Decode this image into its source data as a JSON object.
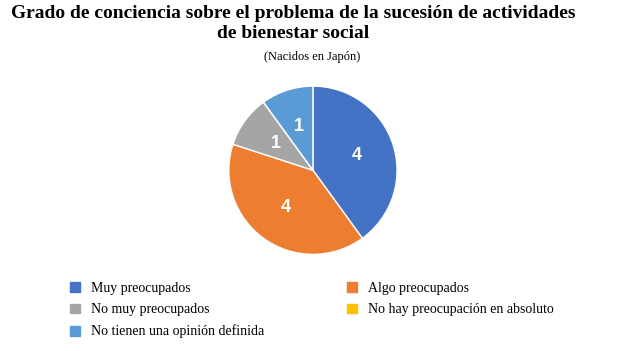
{
  "chart_data": {
    "type": "pie",
    "title": "Grado de conciencia sobre el problema de la sucesión de actividades de bienestar social",
    "subtitle": "(Nacidos en Japón)",
    "categories": [
      "Muy preocupados",
      "Algo preocupados",
      "No muy preocupados",
      "No hay preocupación en absoluto",
      "No tienen una opinión definida"
    ],
    "values": [
      4,
      4,
      1,
      0,
      1
    ],
    "colors": [
      "#4472c4",
      "#ed7d31",
      "#a5a5a5",
      "#ffc000",
      "#5b9bd5"
    ],
    "data_labels": true,
    "legend": "bottom"
  }
}
